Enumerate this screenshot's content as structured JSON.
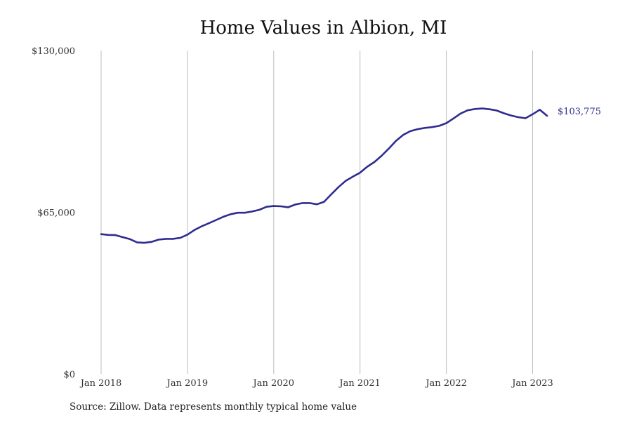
{
  "chart_data": {
    "type": "line",
    "title": "Home Values in Albion, MI",
    "source": "Source: Zillow. Data represents monthly typical home value",
    "x_tick_labels": [
      "Jan 2018",
      "Jan 2019",
      "Jan 2020",
      "Jan 2021",
      "Jan 2022",
      "Jan 2023"
    ],
    "y_tick_labels": [
      "$130,000",
      "$65,000",
      "$0"
    ],
    "y_ticks": [
      130000,
      65000,
      0
    ],
    "ylim": [
      0,
      130000
    ],
    "grid": "vertical",
    "line_color": "#2e2c8f",
    "grid_color": "#bdbdbd",
    "end_label": "$103,775",
    "series": [
      {
        "x": [
          "2018-01",
          "2018-02",
          "2018-03",
          "2018-04",
          "2018-05",
          "2018-06",
          "2018-07",
          "2018-08",
          "2018-09",
          "2018-10",
          "2018-11",
          "2018-12",
          "2019-01",
          "2019-02",
          "2019-03",
          "2019-04",
          "2019-05",
          "2019-06",
          "2019-07",
          "2019-08",
          "2019-09",
          "2019-10",
          "2019-11",
          "2019-12",
          "2020-01",
          "2020-02",
          "2020-03",
          "2020-04",
          "2020-05",
          "2020-06",
          "2020-07",
          "2020-08",
          "2020-09",
          "2020-10",
          "2020-11",
          "2020-12",
          "2021-01",
          "2021-02",
          "2021-03",
          "2021-04",
          "2021-05",
          "2021-06",
          "2021-07",
          "2021-08",
          "2021-09",
          "2021-10",
          "2021-11",
          "2021-12",
          "2022-01",
          "2022-02",
          "2022-03",
          "2022-04",
          "2022-05",
          "2022-06",
          "2022-07",
          "2022-08",
          "2022-09",
          "2022-10",
          "2022-11",
          "2022-12",
          "2023-01",
          "2023-02",
          "2023-03"
        ],
        "values": [
          56200,
          55900,
          55800,
          55000,
          54200,
          52900,
          52700,
          53100,
          54000,
          54300,
          54300,
          54700,
          56000,
          57900,
          59400,
          60600,
          61900,
          63200,
          64200,
          64800,
          64800,
          65300,
          66000,
          67200,
          67500,
          67400,
          67000,
          68100,
          68700,
          68700,
          68200,
          69200,
          72200,
          75100,
          77600,
          79300,
          80900,
          83300,
          85200,
          87700,
          90600,
          93700,
          96100,
          97600,
          98400,
          98900,
          99200,
          99700,
          100800,
          102700,
          104700,
          106000,
          106500,
          106700,
          106400,
          105900,
          104800,
          103900,
          103200,
          102800,
          104400,
          106200,
          103775
        ]
      }
    ]
  }
}
